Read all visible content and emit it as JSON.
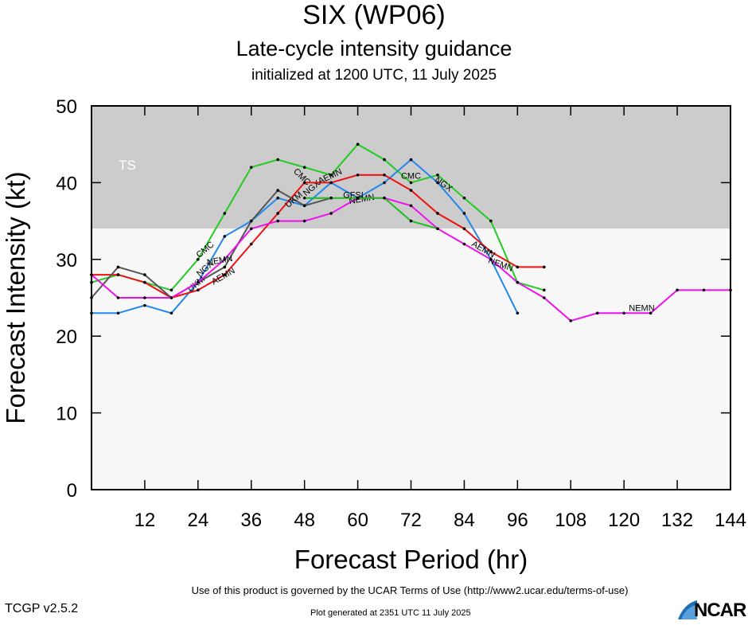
{
  "header": {
    "title": "SIX (WP06)",
    "subtitle": "Late-cycle intensity guidance",
    "initialized": "initialized at 1200 UTC, 11 July 2025"
  },
  "footer": {
    "terms": "Use of this product is governed by the UCAR Terms of Use (http://www2.ucar.edu/terms-of-use)",
    "version": "TCGP v2.5.2",
    "generated": "Plot generated at 2351 UTC   11 July 2025",
    "logo_text": "NCAR"
  },
  "chart_data": {
    "type": "line",
    "title": "SIX (WP06)",
    "subtitle": "Late-cycle intensity guidance",
    "xlabel": "Forecast Period (hr)",
    "ylabel": "Forecast Intensity (kt)",
    "xlim": [
      0,
      144
    ],
    "ylim": [
      0,
      50
    ],
    "xticks": [
      12,
      24,
      36,
      48,
      60,
      72,
      84,
      96,
      108,
      120,
      132,
      144
    ],
    "yticks": [
      0,
      10,
      20,
      30,
      40,
      50
    ],
    "grid": false,
    "legend": "none",
    "bands": [
      {
        "label": "TS",
        "y_from": 34,
        "y_to": 50,
        "color": "#cccccc"
      },
      {
        "label": "",
        "y_from": 0,
        "y_to": 34,
        "color": "#f7f7f7"
      }
    ],
    "series": [
      {
        "name": "CMC",
        "color": "#22cc22",
        "x": [
          0,
          6,
          12,
          18,
          24,
          30,
          36,
          42,
          48,
          54,
          60,
          66,
          72,
          78,
          84,
          90,
          96,
          102
        ],
        "y": [
          27,
          28,
          27,
          26,
          30,
          36,
          42,
          43,
          42,
          41,
          45,
          43,
          40,
          41,
          38,
          35,
          27,
          26
        ],
        "labels": [
          {
            "text": "CMC",
            "x": 26,
            "y": 31,
            "angle": -40
          },
          {
            "text": "CMC",
            "x": 47,
            "y": 40.5,
            "angle": 45
          },
          {
            "text": "CMC",
            "x": 72,
            "y": 40.5,
            "angle": 0
          }
        ]
      },
      {
        "name": "NGX",
        "color": "#2288ee",
        "x": [
          0,
          6,
          12,
          18,
          24,
          30,
          36,
          42,
          48,
          54,
          60,
          66,
          72,
          78,
          84,
          90,
          96
        ],
        "y": [
          23,
          23,
          24,
          23,
          27,
          33,
          35,
          38,
          37,
          40,
          38,
          40,
          43,
          40,
          36,
          30,
          23
        ],
        "labels": [
          {
            "text": "NGX",
            "x": 26,
            "y": 28.5,
            "angle": -40
          },
          {
            "text": "NGX",
            "x": 50,
            "y": 39,
            "angle": -40
          },
          {
            "text": "NGX",
            "x": 79,
            "y": 39.5,
            "angle": 35
          }
        ]
      },
      {
        "name": "AEMN",
        "color": "#ee1111",
        "x": [
          0,
          6,
          12,
          18,
          24,
          30,
          36,
          42,
          48,
          54,
          60,
          66,
          72,
          78,
          84,
          90,
          96,
          102
        ],
        "y": [
          28,
          28,
          27,
          25,
          26,
          28,
          32,
          36,
          40,
          40,
          41,
          41,
          39,
          36,
          34,
          31,
          29,
          29
        ],
        "labels": [
          {
            "text": "AEMN",
            "x": 30,
            "y": 27.5,
            "angle": -30
          },
          {
            "text": "AEMN",
            "x": 54,
            "y": 40.5,
            "angle": -25
          },
          {
            "text": "AEMN",
            "x": 88,
            "y": 31,
            "angle": 30
          }
        ]
      },
      {
        "name": "UKM",
        "color": "#555555",
        "x": [
          0,
          6,
          12,
          18,
          24,
          30,
          36,
          42,
          48,
          54
        ],
        "y": [
          25,
          29,
          28,
          25,
          27,
          29,
          35,
          39,
          37,
          38
        ],
        "labels": [
          {
            "text": "UKM",
            "x": 24,
            "y": 26.5,
            "angle": -40
          },
          {
            "text": "UKM",
            "x": 46,
            "y": 37.5,
            "angle": -40
          }
        ]
      },
      {
        "name": "NEMN",
        "color": "#ee11ee",
        "x": [
          0,
          6,
          12,
          18,
          24,
          30,
          36,
          42,
          48,
          54,
          60,
          66,
          72,
          78,
          84,
          90,
          96,
          102,
          108,
          114,
          120,
          126,
          132,
          138,
          144
        ],
        "y": [
          28,
          25,
          25,
          25,
          27,
          30,
          34,
          35,
          35,
          36,
          38,
          38,
          37,
          34,
          32,
          30,
          27,
          25,
          22,
          23,
          23,
          23,
          26,
          26,
          26
        ],
        "labels": [
          {
            "text": "NEMN",
            "x": 29,
            "y": 29.5,
            "angle": -10
          },
          {
            "text": "NEMN",
            "x": 61,
            "y": 37.5,
            "angle": -10
          },
          {
            "text": "NEMN",
            "x": 92,
            "y": 29,
            "angle": 20
          },
          {
            "text": "NEMN",
            "x": 124,
            "y": 23.3,
            "angle": 0
          }
        ]
      },
      {
        "name": "GFSI",
        "color": "#22bb22",
        "x": [
          48,
          54,
          60,
          66,
          72,
          78
        ],
        "y": [
          38,
          38,
          38,
          38,
          35,
          34
        ],
        "labels": [
          {
            "text": "GFSI",
            "x": 59,
            "y": 38,
            "angle": 0
          }
        ]
      }
    ]
  }
}
